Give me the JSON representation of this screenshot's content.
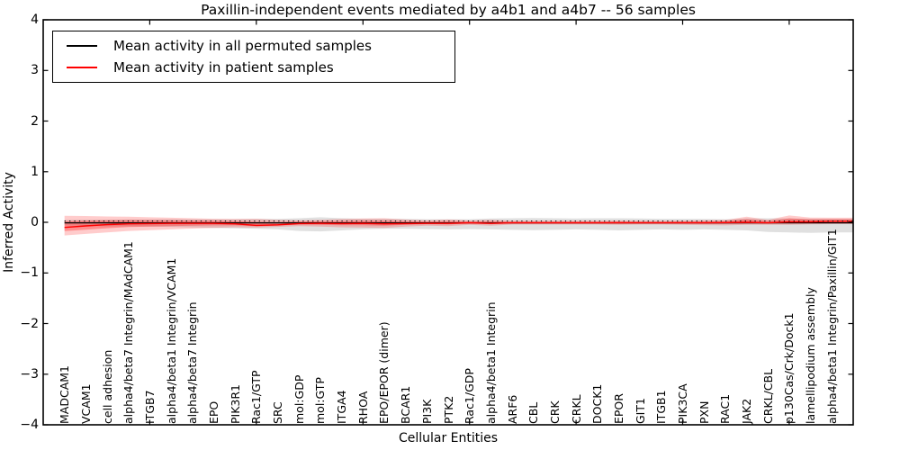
{
  "title": "Paxillin-independent events mediated by a4b1 and a4b7 -- 56 samples",
  "legend": {
    "items": [
      {
        "label": "Mean activity in all permuted samples",
        "color": "#000000"
      },
      {
        "label": "Mean activity in patient samples",
        "color": "#ff0000"
      }
    ]
  },
  "axes": {
    "ylabel": "Inferred Activity",
    "xlabel": "Cellular Entities",
    "ytick_labels": [
      "4",
      "3",
      "2",
      "1",
      "0",
      "−1",
      "−2",
      "−3",
      "−4"
    ],
    "yticks": [
      4,
      3,
      2,
      1,
      0,
      -1,
      -2,
      -3,
      -4
    ],
    "ylim": [
      -4,
      4
    ]
  },
  "chart_data": {
    "type": "line",
    "title": "Paxillin-independent events mediated by a4b1 and a4b7 -- 56 samples",
    "xlabel": "Cellular Entities",
    "ylabel": "Inferred Activity",
    "ylim": [
      -4,
      4
    ],
    "grid": false,
    "legend_position": "upper left",
    "categories": [
      "MADCAM1",
      "VCAM1",
      "cell adhesion",
      "alpha4/beta7 Integrin/MAdCAM1",
      "ITGB7",
      "alpha4/beta1 Integrin/VCAM1",
      "alpha4/beta7 Integrin",
      "EPO",
      "PIK3R1",
      "Rac1/GTP",
      "SRC",
      "mol:GDP",
      "mol:GTP",
      "ITGA4",
      "RHOA",
      "EPO/EPOR (dimer)",
      "BCAR1",
      "PI3K",
      "PTK2",
      "Rac1/GDP",
      "alpha4/beta1 Integrin",
      "ARF6",
      "CBL",
      "CRK",
      "CRKL",
      "DOCK1",
      "EPOR",
      "GIT1",
      "ITGB1",
      "PIK3CA",
      "PXN",
      "RAC1",
      "JAK2",
      "CRKL/CBL",
      "p130Cas/Crk/Dock1",
      "lamellipodium assembly",
      "alpha4/beta1 Integrin/Paxillin/GIT1"
    ],
    "series": [
      {
        "name": "Mean activity in all permuted samples",
        "color": "#000000",
        "values": [
          0,
          0,
          0,
          0,
          0,
          0,
          0,
          0,
          0,
          0,
          0,
          0,
          0,
          0,
          0,
          0,
          0,
          0,
          0,
          0,
          0,
          0,
          0,
          0,
          0,
          0,
          0,
          0,
          0,
          0,
          0,
          0,
          0,
          0,
          0,
          0,
          0
        ]
      },
      {
        "name": "Mean activity in patient samples",
        "color": "#ff0000",
        "values": [
          -0.09,
          -0.06,
          -0.035,
          -0.02,
          -0.015,
          -0.01,
          -0.01,
          -0.01,
          -0.02,
          -0.05,
          -0.04,
          -0.015,
          -0.01,
          -0.015,
          -0.01,
          -0.02,
          -0.015,
          -0.01,
          -0.01,
          0,
          -0.01,
          0,
          0,
          0,
          0,
          0,
          0,
          0,
          0,
          0,
          0,
          0.005,
          0.01,
          0,
          0.02,
          0.02,
          0.03
        ]
      }
    ],
    "bands": [
      {
        "name": "permuted-samples-range",
        "fill": "rgba(0,0,0,0.12)",
        "upper": [
          0.045,
          0.05,
          0.05,
          0.055,
          0.055,
          0.06,
          0.06,
          0.06,
          0.06,
          0.065,
          0.065,
          0.08,
          0.1,
          0.08,
          0.07,
          0.07,
          0.065,
          0.06,
          0.06,
          0.06,
          0.075,
          0.08,
          0.085,
          0.08,
          0.075,
          0.08,
          0.08,
          0.075,
          0.07,
          0.07,
          0.065,
          0.06,
          0.075,
          0.08,
          0.075,
          0.07,
          0.065
        ],
        "lower": [
          -0.06,
          -0.07,
          -0.08,
          -0.08,
          -0.085,
          -0.09,
          -0.1,
          -0.11,
          -0.12,
          -0.13,
          -0.14,
          -0.17,
          -0.18,
          -0.16,
          -0.14,
          -0.13,
          -0.13,
          -0.135,
          -0.14,
          -0.135,
          -0.14,
          -0.15,
          -0.155,
          -0.15,
          -0.14,
          -0.15,
          -0.16,
          -0.15,
          -0.14,
          -0.15,
          -0.14,
          -0.15,
          -0.16,
          -0.19,
          -0.2,
          -0.21,
          -0.2
        ]
      },
      {
        "name": "patient-samples-range-outer",
        "fill": "rgba(255,0,0,0.20)",
        "upper": [
          0.13,
          0.125,
          0.115,
          0.11,
          0.1,
          0.09,
          0.08,
          0.07,
          0.065,
          0.07,
          0.05,
          0.04,
          0.05,
          0.065,
          0.075,
          0.08,
          0.055,
          0.04,
          0.055,
          0.035,
          0.05,
          0.03,
          0.03,
          0.03,
          0.03,
          0.03,
          0.035,
          0.03,
          0.03,
          0.035,
          0.04,
          0.045,
          0.11,
          0.05,
          0.135,
          0.095,
          0.09
        ],
        "lower": [
          -0.26,
          -0.23,
          -0.2,
          -0.17,
          -0.155,
          -0.14,
          -0.125,
          -0.11,
          -0.1,
          -0.105,
          -0.09,
          -0.075,
          -0.085,
          -0.1,
          -0.105,
          -0.11,
          -0.085,
          -0.065,
          -0.075,
          -0.05,
          -0.065,
          -0.045,
          -0.045,
          -0.045,
          -0.045,
          -0.045,
          -0.05,
          -0.045,
          -0.045,
          -0.05,
          -0.055,
          -0.06,
          -0.05,
          -0.05,
          -0.05,
          -0.04,
          -0.035
        ]
      },
      {
        "name": "patient-samples-range-core",
        "fill": "rgba(255,0,0,0.30)",
        "upper": [
          0.02,
          0.033,
          0.04,
          0.045,
          0.043,
          0.04,
          0.035,
          0.03,
          0.023,
          0.01,
          0.005,
          0.013,
          0.02,
          0.025,
          0.033,
          0.03,
          0.02,
          0.015,
          0.023,
          0.018,
          0.02,
          0.015,
          0.015,
          0.015,
          0.015,
          0.015,
          0.018,
          0.015,
          0.015,
          0.018,
          0.02,
          0.025,
          0.06,
          0.025,
          0.078,
          0.058,
          0.06
        ],
        "lower": [
          -0.175,
          -0.145,
          -0.118,
          -0.095,
          -0.085,
          -0.075,
          -0.068,
          -0.06,
          -0.06,
          -0.078,
          -0.065,
          -0.045,
          -0.048,
          -0.058,
          -0.058,
          -0.065,
          -0.05,
          -0.038,
          -0.043,
          -0.025,
          -0.038,
          -0.023,
          -0.023,
          -0.023,
          -0.023,
          -0.023,
          -0.025,
          -0.023,
          -0.023,
          -0.025,
          -0.028,
          -0.028,
          -0.02,
          -0.025,
          -0.015,
          -0.01,
          -0.003
        ]
      }
    ],
    "zero_reference_line": {
      "style": "dotted",
      "color": "#000000",
      "y": 0
    }
  }
}
